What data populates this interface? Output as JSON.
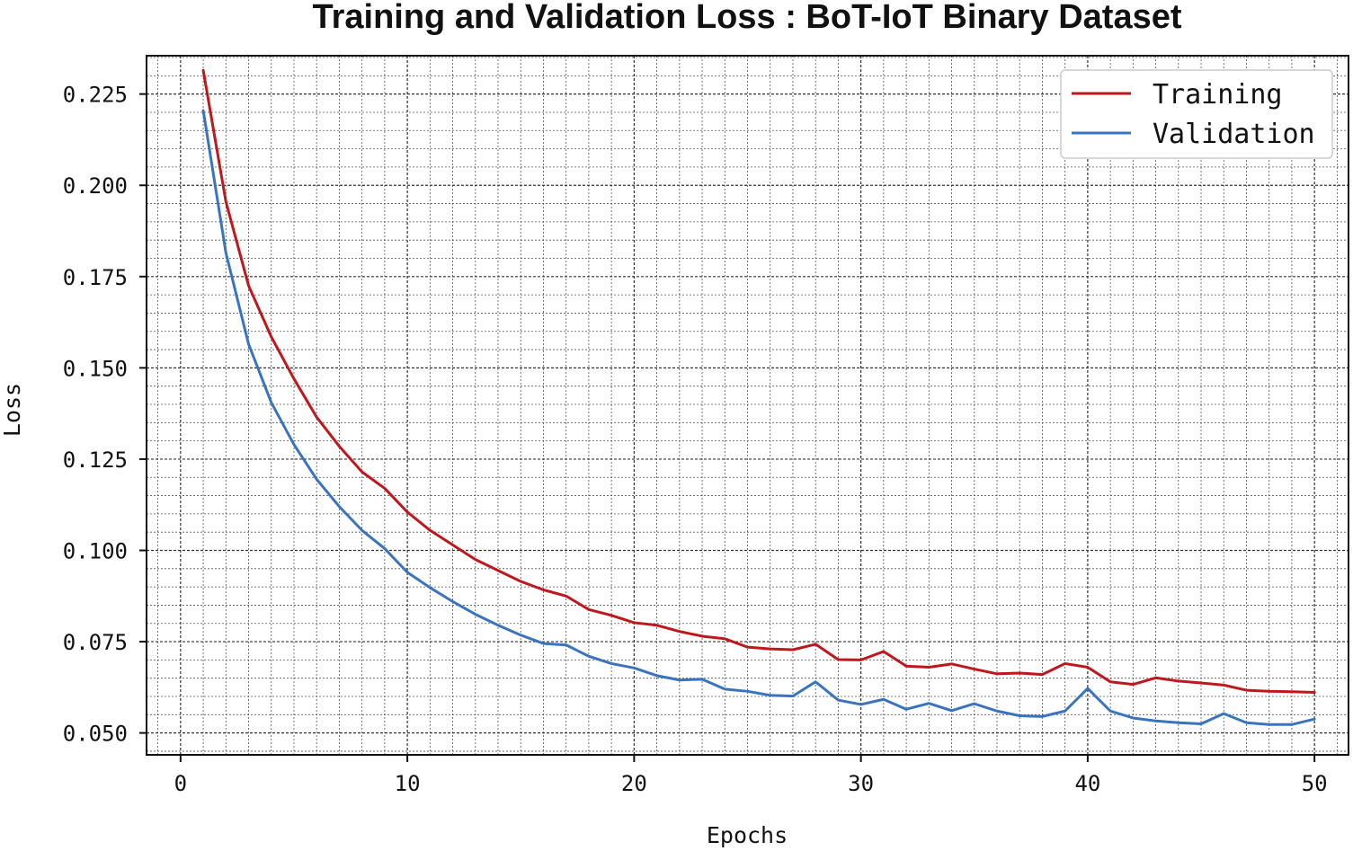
{
  "chart_data": {
    "type": "line",
    "title": "Training and Validation Loss : BoT-IoT Binary Dataset",
    "xlabel": "Epochs",
    "ylabel": "Loss",
    "xlim": [
      -1.5,
      51.5
    ],
    "ylim": [
      0.044,
      0.2355
    ],
    "xticks": [
      0,
      10,
      20,
      30,
      40,
      50
    ],
    "xtick_labels": [
      "0",
      "10",
      "20",
      "30",
      "40",
      "50"
    ],
    "yticks": [
      0.05,
      0.075,
      0.1,
      0.125,
      0.15,
      0.175,
      0.2,
      0.225
    ],
    "ytick_labels": [
      "0.050",
      "0.075",
      "0.100",
      "0.125",
      "0.150",
      "0.175",
      "0.200",
      "0.225"
    ],
    "grid": true,
    "minor_grid": true,
    "legend_position": "top-right",
    "x": [
      1,
      2,
      3,
      4,
      5,
      6,
      7,
      8,
      9,
      10,
      11,
      12,
      13,
      14,
      15,
      16,
      17,
      18,
      19,
      20,
      21,
      22,
      23,
      24,
      25,
      26,
      27,
      28,
      29,
      30,
      31,
      32,
      33,
      34,
      35,
      36,
      37,
      38,
      39,
      40,
      41,
      42,
      43,
      44,
      45,
      46,
      47,
      48,
      49,
      50
    ],
    "series": [
      {
        "name": "Training",
        "color": "#c0171c",
        "values": [
          0.2315,
          0.1955,
          0.1725,
          0.1585,
          0.147,
          0.1365,
          0.1285,
          0.1215,
          0.117,
          0.1105,
          0.1055,
          0.1015,
          0.0975,
          0.0945,
          0.0915,
          0.0892,
          0.0875,
          0.0838,
          0.0822,
          0.0802,
          0.0795,
          0.0778,
          0.0765,
          0.0758,
          0.0735,
          0.073,
          0.0728,
          0.0743,
          0.0701,
          0.07,
          0.0723,
          0.0683,
          0.068,
          0.0689,
          0.0675,
          0.0662,
          0.0664,
          0.066,
          0.069,
          0.068,
          0.064,
          0.0633,
          0.0651,
          0.0642,
          0.0637,
          0.0631,
          0.0617,
          0.0614,
          0.0613,
          0.0611
        ]
      },
      {
        "name": "Validation",
        "color": "#3a73be",
        "values": [
          0.2205,
          0.1815,
          0.1565,
          0.1405,
          0.129,
          0.1195,
          0.112,
          0.1055,
          0.1005,
          0.094,
          0.0898,
          0.086,
          0.0825,
          0.0795,
          0.0768,
          0.0745,
          0.0741,
          0.071,
          0.069,
          0.0678,
          0.0657,
          0.0645,
          0.0647,
          0.062,
          0.0614,
          0.0603,
          0.0601,
          0.064,
          0.059,
          0.0578,
          0.0592,
          0.0565,
          0.0581,
          0.0561,
          0.058,
          0.056,
          0.0547,
          0.0545,
          0.056,
          0.0622,
          0.056,
          0.0541,
          0.0533,
          0.0528,
          0.0525,
          0.0553,
          0.0528,
          0.0523,
          0.0523,
          0.0538
        ]
      }
    ]
  }
}
